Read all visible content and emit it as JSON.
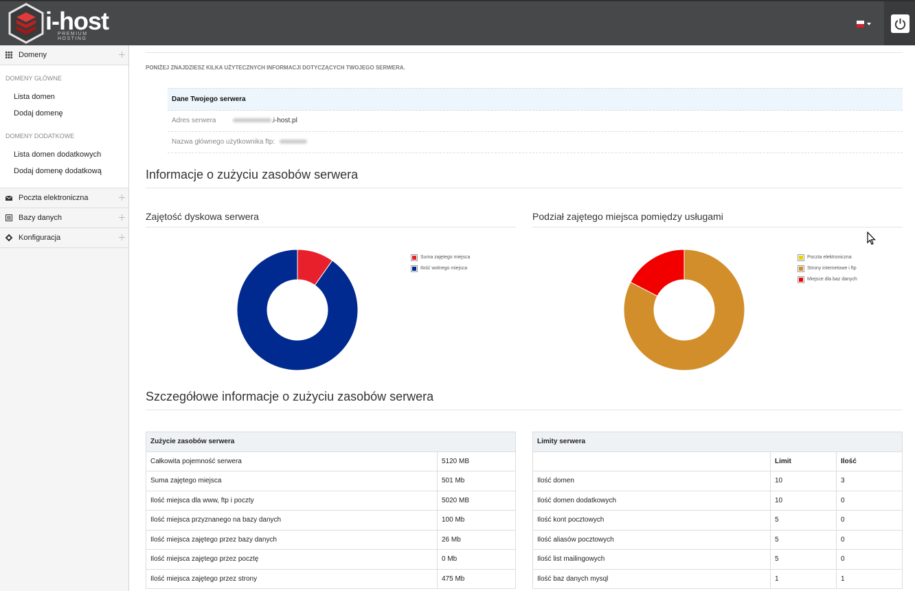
{
  "header": {
    "logo_text": "i-host",
    "logo_sub": "PREMIUM HOSTING",
    "language": "pl"
  },
  "sidebar": {
    "sections": [
      {
        "label": "Domeny",
        "icon": "grid-icon"
      },
      {
        "label": "Poczta elektroniczna",
        "icon": "envelope-icon"
      },
      {
        "label": "Bazy danych",
        "icon": "database-icon"
      },
      {
        "label": "Konfiguracja",
        "icon": "gear-icon"
      }
    ],
    "group1_title": "DOMENY GŁÓWNE",
    "group1_links": [
      "Lista domen",
      "Dodaj domenę"
    ],
    "group2_title": "DOMENY DODATKOWE",
    "group2_links": [
      "Lista domen dodatkowych",
      "Dodaj domenę dodatkową"
    ]
  },
  "main": {
    "intro": "PONIŻEJ ZNAJDZIESZ KILKA UŻYTECZNYCH INFORMACJI DOTYCZĄCYCH TWOJEGO SERWERA.",
    "server": {
      "title": "Dane Twojego serwera",
      "address_label": "Adres serwera",
      "address_suffix": ".i-host.pl",
      "ftp_label": "Nazwa głównego użytkownika ftp:"
    },
    "usage_title": "Informacje o zużyciu zasobów serwera",
    "details_title": "Szczegółowe informacje o zużyciu zasobów serwera"
  },
  "chart_data": [
    {
      "type": "pie",
      "title": "Zajętość dyskowa serwera",
      "categories": [
        "Suma zajętego miejsca",
        "Ilość wolnego miejsca"
      ],
      "values": [
        501,
        4619
      ],
      "colors": [
        "#e8202c",
        "#002a8f"
      ]
    },
    {
      "type": "pie",
      "title": "Podział zajętego miejsca pomiędzy usługami",
      "categories": [
        "Poczta elektroniczna",
        "Strony internetowe i ftp",
        "Miejsce dla baz danych"
      ],
      "values": [
        0,
        475,
        100
      ],
      "colors": [
        "#e8d200",
        "#d28e2a",
        "#f20000"
      ]
    }
  ],
  "usage_table": {
    "caption": "Zużycie zasobów serwera",
    "rows": [
      [
        "Całkowita pojemność serwera",
        "5120 MB"
      ],
      [
        "Suma zajętego miejsca",
        "501 Mb"
      ],
      [
        "Ilość miejsca dla www, ftp i poczty",
        "5020 MB"
      ],
      [
        "Ilość miejsca przyznanego na bazy danych",
        "100 Mb"
      ],
      [
        "Ilość miejsca zajętego przez bazy danych",
        "26 Mb"
      ],
      [
        "Ilość miejsca zajętego przez pocztę",
        "0 Mb"
      ],
      [
        "Ilość miejsca zajętego przez strony",
        "475 Mb"
      ]
    ]
  },
  "limits_table": {
    "caption": "Limity serwera",
    "col_limit": "Limit",
    "col_count": "Ilość",
    "rows": [
      [
        "Ilość domen",
        "10",
        "3"
      ],
      [
        "Ilość domen dodatkowych",
        "10",
        "0"
      ],
      [
        "Ilość kont pocztowych",
        "5",
        "0"
      ],
      [
        "Ilość aliasów pocztowych",
        "5",
        "0"
      ],
      [
        "Ilość list mailingowych",
        "5",
        "0"
      ],
      [
        "Ilość baz danych mysql",
        "1",
        "1"
      ]
    ]
  }
}
